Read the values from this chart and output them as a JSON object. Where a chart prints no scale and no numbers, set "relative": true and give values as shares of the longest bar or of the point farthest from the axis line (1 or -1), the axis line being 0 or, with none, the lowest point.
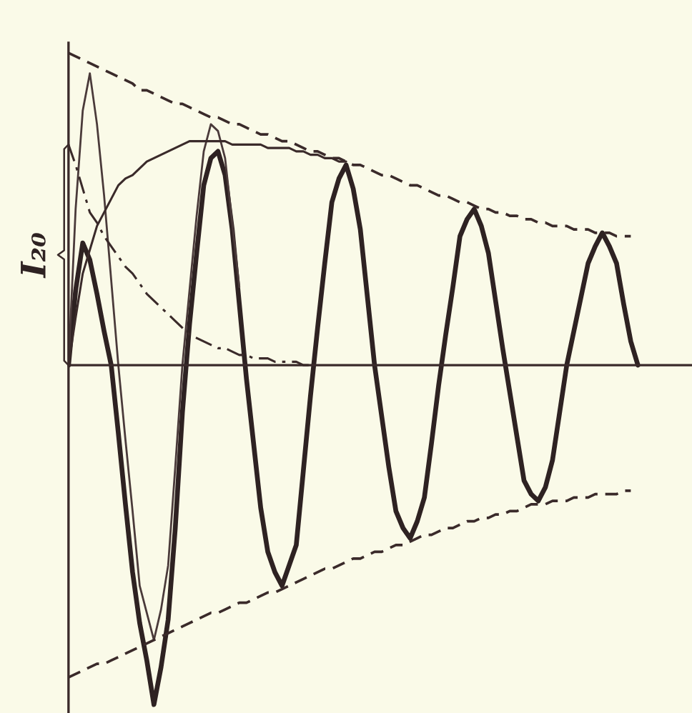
{
  "chart_data": {
    "type": "line",
    "relative": true,
    "annotations": [
      "I₂₀"
    ],
    "categories": [
      null,
      null,
      null,
      null,
      null,
      null,
      null,
      null,
      null,
      null,
      null,
      null,
      null,
      null,
      null,
      null,
      null,
      null,
      null,
      null,
      null,
      null,
      null,
      null,
      null,
      null,
      null,
      null,
      null,
      null,
      null,
      null,
      null,
      null,
      null,
      null,
      null,
      null,
      null,
      null,
      null,
      null,
      null,
      null,
      null,
      null,
      null,
      null,
      null,
      null,
      null,
      null,
      null,
      null,
      null,
      null,
      null,
      null,
      null,
      null,
      null,
      null,
      null,
      null,
      null,
      null,
      null,
      null,
      null,
      null,
      null,
      null,
      null,
      null,
      null,
      null,
      null,
      null,
      null,
      null,
      null
    ],
    "series": [
      {
        "color": "#2e2222",
        "line_style": "solid",
        "values": [
          0,
          0.22,
          0.36,
          0.31,
          0.21,
          0.1,
          0,
          -0.2,
          -0.41,
          -0.61,
          -0.76,
          -0.87,
          -1,
          -0.89,
          -0.75,
          -0.48,
          -0.14,
          0.12,
          0.33,
          0.53,
          0.61,
          0.63,
          0.56,
          0.4,
          0.18,
          -0.04,
          -0.23,
          -0.42,
          -0.55,
          -0.61,
          -0.65,
          -0.59,
          -0.53,
          -0.31,
          -0.09,
          0.11,
          0.3,
          0.48,
          0.55,
          0.59,
          0.52,
          0.4,
          0.2,
          0,
          -0.15,
          -0.3,
          -0.43,
          -0.48,
          -0.51,
          -0.46,
          -0.39,
          -0.23,
          -0.06,
          0.09,
          0.23,
          0.38,
          0.43,
          0.46,
          0.41,
          0.33,
          0.19,
          0.05,
          -0.08,
          -0.21,
          -0.34,
          -0.38,
          -0.4,
          -0.36,
          -0.28,
          -0.14,
          0,
          0.1,
          0.2,
          0.3,
          0.35,
          0.39,
          0.35,
          0.3,
          0.18,
          0.07,
          0
        ]
      },
      {
        "color": "#4a3a3a",
        "line_style": "solid",
        "values": [
          0,
          0.46,
          0.75,
          0.86,
          0.71,
          0.5,
          0.25,
          0,
          -0.22,
          -0.43,
          -0.65,
          -0.73,
          -0.81,
          -0.72,
          -0.59,
          -0.3,
          0,
          0.22,
          0.44,
          0.63,
          0.71,
          0.69,
          0.61,
          0.42,
          0.23,
          null,
          null,
          null,
          null,
          null,
          null,
          null,
          null,
          null,
          null,
          null,
          null,
          null,
          null,
          null,
          null,
          null,
          null,
          null,
          null,
          null,
          null,
          null,
          null,
          null,
          null,
          null,
          null,
          null,
          null,
          null,
          null,
          null,
          null,
          null,
          null,
          null,
          null,
          null,
          null,
          null,
          null,
          null,
          null,
          null,
          null,
          null,
          null,
          null,
          null,
          null,
          null,
          null,
          null,
          null,
          null
        ]
      },
      {
        "color": "#3a2a2a",
        "line_style": "dashed",
        "values": [
          0.92,
          0.91,
          0.9,
          0.89,
          0.88,
          0.87,
          0.86,
          0.85,
          0.84,
          0.83,
          0.81,
          0.81,
          0.8,
          0.79,
          0.78,
          0.77,
          0.77,
          0.76,
          0.75,
          0.74,
          0.73,
          0.73,
          0.72,
          0.71,
          0.71,
          0.7,
          0.69,
          0.68,
          0.68,
          0.67,
          0.66,
          0.66,
          0.65,
          0.64,
          0.63,
          0.63,
          0.62,
          0.61,
          0.61,
          0.6,
          0.59,
          0.59,
          0.58,
          0.57,
          0.56,
          0.56,
          0.55,
          0.54,
          0.53,
          0.53,
          0.52,
          0.51,
          0.5,
          0.5,
          0.49,
          0.48,
          0.48,
          0.47,
          0.46,
          0.46,
          0.45,
          0.45,
          0.44,
          0.44,
          0.43,
          0.43,
          0.42,
          0.42,
          0.41,
          0.41,
          0.41,
          0.4,
          0.4,
          0.4,
          0.39,
          0.39,
          0.39,
          0.38,
          0.38,
          0.38,
          null
        ]
      },
      {
        "color": "#3a2a2a",
        "line_style": "dashed",
        "values": [
          -0.92,
          -0.91,
          -0.9,
          -0.89,
          -0.88,
          -0.88,
          -0.87,
          -0.86,
          -0.85,
          -0.84,
          -0.83,
          -0.82,
          -0.81,
          -0.8,
          -0.79,
          -0.78,
          -0.77,
          -0.76,
          -0.75,
          -0.74,
          -0.73,
          -0.73,
          -0.72,
          -0.71,
          -0.7,
          -0.7,
          -0.69,
          -0.68,
          -0.67,
          -0.67,
          -0.66,
          -0.65,
          -0.64,
          -0.63,
          -0.62,
          -0.61,
          -0.6,
          -0.6,
          -0.59,
          -0.58,
          -0.57,
          -0.57,
          -0.56,
          -0.55,
          -0.55,
          -0.54,
          -0.53,
          -0.53,
          -0.52,
          -0.51,
          -0.5,
          -0.5,
          -0.49,
          -0.48,
          -0.48,
          -0.47,
          -0.46,
          -0.46,
          -0.45,
          -0.45,
          -0.44,
          -0.44,
          -0.43,
          -0.43,
          -0.42,
          -0.41,
          -0.41,
          -0.41,
          -0.4,
          -0.4,
          -0.4,
          -0.39,
          -0.39,
          -0.39,
          -0.38,
          -0.38,
          -0.38,
          -0.38,
          -0.37,
          -0.37,
          null
        ]
      },
      {
        "color": "#3a2a2a",
        "line_style": "solid",
        "values": [
          0,
          0.14,
          0.27,
          0.34,
          0.41,
          0.45,
          0.49,
          0.53,
          0.55,
          0.56,
          0.58,
          0.6,
          0.61,
          0.62,
          0.63,
          0.64,
          0.65,
          0.66,
          0.66,
          0.66,
          0.66,
          0.66,
          0.66,
          0.65,
          0.65,
          0.65,
          0.65,
          0.65,
          0.64,
          0.64,
          0.64,
          0.64,
          0.63,
          0.63,
          0.62,
          0.62,
          0.61,
          0.61,
          0.6,
          0.6,
          null,
          null,
          null,
          null,
          null,
          null,
          null,
          null,
          null,
          null,
          null,
          null,
          null,
          null,
          null,
          null,
          null,
          null,
          null,
          null,
          null,
          null,
          null,
          null,
          null,
          null,
          null,
          null,
          null,
          null,
          null,
          null,
          null,
          null,
          null,
          null,
          null,
          null,
          null,
          null,
          null
        ]
      },
      {
        "color": "#3a2a2a",
        "line_style": "dashdot",
        "values": [
          0.65,
          0.59,
          0.52,
          0.45,
          0.42,
          0.38,
          0.35,
          0.32,
          0.29,
          0.27,
          0.24,
          0.21,
          0.19,
          0.17,
          0.15,
          0.13,
          0.11,
          0.09,
          0.08,
          0.07,
          0.06,
          0.05,
          0.05,
          0.04,
          0.03,
          0.03,
          0.02,
          0.02,
          0.02,
          0.01,
          0.01,
          0.01,
          0.01,
          0,
          0,
          null,
          null,
          null,
          null,
          null,
          null,
          null,
          null,
          null,
          null,
          null,
          null,
          null,
          null,
          null,
          null,
          null,
          null,
          null,
          null,
          null,
          null,
          null,
          null,
          null,
          null,
          null,
          null,
          null,
          null,
          null,
          null,
          null,
          null,
          null,
          null,
          null,
          null,
          null,
          null,
          null,
          null,
          null,
          null,
          null,
          null
        ]
      }
    ]
  }
}
